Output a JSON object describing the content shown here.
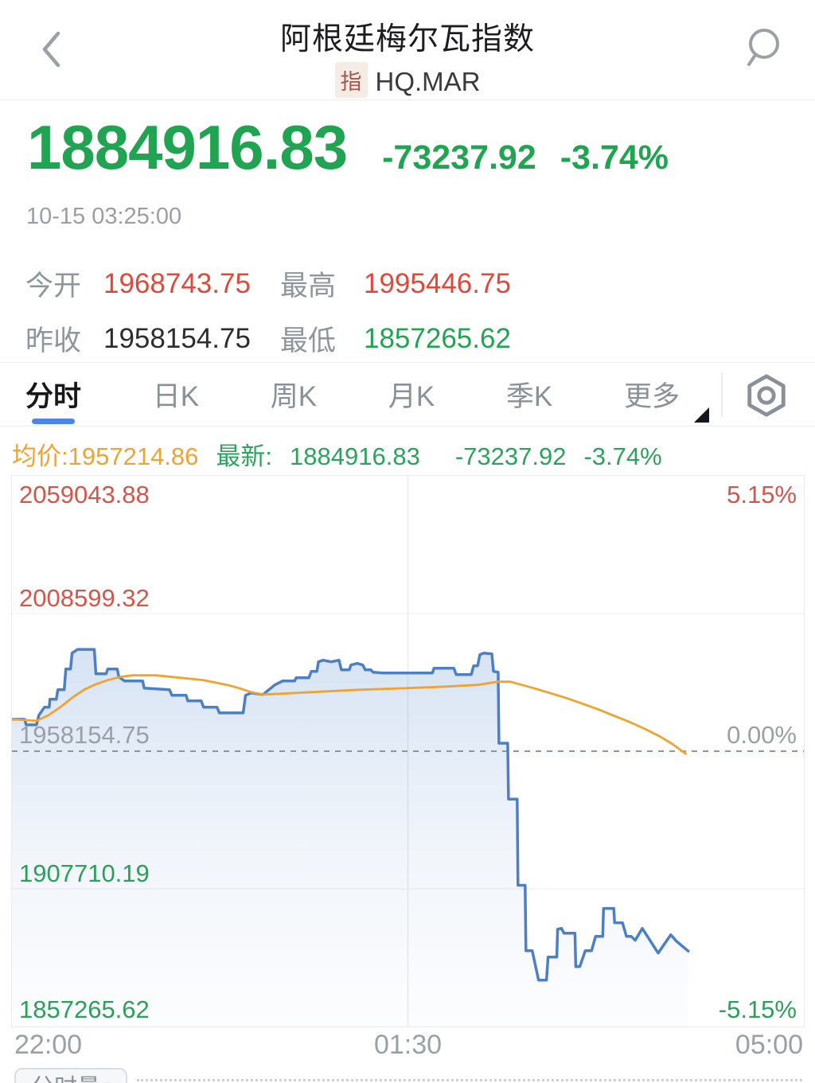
{
  "header": {
    "title": "阿根廷梅尔瓦指数",
    "badge": "指",
    "code": "HQ.MAR"
  },
  "quote": {
    "price": "1884916.83",
    "change": "-73237.92",
    "change_pct": "-3.74%",
    "timestamp": "10-15 03:25:00",
    "stats": [
      {
        "label": "今开",
        "value": "1968743.75",
        "color": "red"
      },
      {
        "label": "最高",
        "value": "1995446.75",
        "color": "red"
      },
      {
        "label": "昨收",
        "value": "1958154.75",
        "color": "dark"
      },
      {
        "label": "最低",
        "value": "1857265.62",
        "color": "green"
      }
    ]
  },
  "tabs": {
    "items": [
      "分时",
      "日K",
      "周K",
      "月K",
      "季K",
      "更多"
    ],
    "active": "分时"
  },
  "legend": {
    "avg_label": "均价:",
    "avg_value": "1957214.86",
    "last_label": "最新:",
    "last_value": "1884916.83",
    "last_change": "-73237.92",
    "last_pct": "-3.74%"
  },
  "volume": {
    "button_label": "分时量",
    "caret": "▾"
  },
  "colors": {
    "up_red": "#e0483c",
    "down_green": "#21a452",
    "avg_orange": "#f0a330",
    "line_blue": "#4d7fc4",
    "fill_blue": "#7aa3d9",
    "accent_blue": "#4a86e8",
    "dash_gray": "#8e959c",
    "grid_light": "#f3f3f3",
    "grid_mid": "#e9e9e9"
  },
  "chart_data": {
    "type": "line",
    "title": "分时 (intraday) — 阿根廷梅尔瓦指数 HQ.MAR",
    "ylim": [
      1857265.62,
      2059043.88
    ],
    "baseline": 1958154.75,
    "grid": true,
    "legend_position": "top-left",
    "y_axis_left": [
      {
        "text": "2059043.88",
        "color": "red"
      },
      {
        "text": "2008599.32",
        "color": "red"
      },
      {
        "text": "1958154.75",
        "color": "gray"
      },
      {
        "text": "1907710.19",
        "color": "green"
      },
      {
        "text": "1857265.62",
        "color": "green"
      }
    ],
    "y_axis_right": [
      {
        "text": "5.15%",
        "color": "red"
      },
      {
        "text": "0.00%",
        "color": "gray"
      },
      {
        "text": "-5.15%",
        "color": "green"
      }
    ],
    "x_ticks": [
      "22:00",
      "01:30",
      "05:00"
    ],
    "series": [
      {
        "name": "price",
        "color": "#4d7fc4",
        "points": [
          [
            0.0,
            1969850
          ],
          [
            0.016,
            1969850
          ],
          [
            0.018,
            1967800
          ],
          [
            0.031,
            1967800
          ],
          [
            0.034,
            1971300
          ],
          [
            0.041,
            1974240
          ],
          [
            0.047,
            1974240
          ],
          [
            0.048,
            1977160
          ],
          [
            0.056,
            1977160
          ],
          [
            0.058,
            1980670
          ],
          [
            0.066,
            1980670
          ],
          [
            0.068,
            1988280
          ],
          [
            0.074,
            1988280
          ],
          [
            0.076,
            1994120
          ],
          [
            0.083,
            1995447
          ],
          [
            0.104,
            1995447
          ],
          [
            0.106,
            1986520
          ],
          [
            0.119,
            1986520
          ],
          [
            0.121,
            1988280
          ],
          [
            0.133,
            1988280
          ],
          [
            0.135,
            1985350
          ],
          [
            0.142,
            1983890
          ],
          [
            0.165,
            1983890
          ],
          [
            0.167,
            1981260
          ],
          [
            0.199,
            1980670
          ],
          [
            0.202,
            1978620
          ],
          [
            0.22,
            1978620
          ],
          [
            0.222,
            1976580
          ],
          [
            0.239,
            1976580
          ],
          [
            0.242,
            1974240
          ],
          [
            0.259,
            1974240
          ],
          [
            0.262,
            1972190
          ],
          [
            0.292,
            1972190
          ],
          [
            0.295,
            1978620
          ],
          [
            0.302,
            1979500
          ],
          [
            0.317,
            1978920
          ],
          [
            0.332,
            1982430
          ],
          [
            0.342,
            1983890
          ],
          [
            0.357,
            1983890
          ],
          [
            0.359,
            1985060
          ],
          [
            0.375,
            1985060
          ],
          [
            0.378,
            1987400
          ],
          [
            0.385,
            1987400
          ],
          [
            0.387,
            1990910
          ],
          [
            0.393,
            1991490
          ],
          [
            0.403,
            1990910
          ],
          [
            0.413,
            1991490
          ],
          [
            0.416,
            1987980
          ],
          [
            0.426,
            1987980
          ],
          [
            0.428,
            1989740
          ],
          [
            0.436,
            1990320
          ],
          [
            0.443,
            1989740
          ],
          [
            0.446,
            1987980
          ],
          [
            0.453,
            1987980
          ],
          [
            0.456,
            1987110
          ],
          [
            0.468,
            1986810
          ],
          [
            0.531,
            1986810
          ],
          [
            0.533,
            1988570
          ],
          [
            0.558,
            1988570
          ],
          [
            0.561,
            1986230
          ],
          [
            0.58,
            1986230
          ],
          [
            0.583,
            1989450
          ],
          [
            0.588,
            1989450
          ],
          [
            0.591,
            1993540
          ],
          [
            0.596,
            1994120
          ],
          [
            0.606,
            1993830
          ],
          [
            0.608,
            1987400
          ],
          [
            0.614,
            1987110
          ],
          [
            0.615,
            1961080
          ],
          [
            0.626,
            1961080
          ],
          [
            0.627,
            1940610
          ],
          [
            0.638,
            1940610
          ],
          [
            0.639,
            1909030
          ],
          [
            0.648,
            1909030
          ],
          [
            0.649,
            1885050
          ],
          [
            0.657,
            1885050
          ],
          [
            0.665,
            1874230
          ],
          [
            0.675,
            1874230
          ],
          [
            0.677,
            1882710
          ],
          [
            0.688,
            1882710
          ],
          [
            0.689,
            1892940
          ],
          [
            0.694,
            1893230
          ],
          [
            0.697,
            1891480
          ],
          [
            0.711,
            1891480
          ],
          [
            0.712,
            1879200
          ],
          [
            0.717,
            1879200
          ],
          [
            0.724,
            1885050
          ],
          [
            0.732,
            1885050
          ],
          [
            0.737,
            1890310
          ],
          [
            0.746,
            1890310
          ],
          [
            0.747,
            1900550
          ],
          [
            0.76,
            1900550
          ],
          [
            0.761,
            1895280
          ],
          [
            0.771,
            1895280
          ],
          [
            0.776,
            1890310
          ],
          [
            0.782,
            1890310
          ],
          [
            0.787,
            1888850
          ],
          [
            0.796,
            1893230
          ],
          [
            0.816,
            1884170
          ],
          [
            0.832,
            1890900
          ],
          [
            0.839,
            1888560
          ],
          [
            0.854,
            1884917
          ]
        ]
      },
      {
        "name": "avg",
        "color": "#f0a330",
        "points": [
          [
            0.0,
            1969850
          ],
          [
            0.02,
            1969500
          ],
          [
            0.031,
            1969270
          ],
          [
            0.046,
            1971310
          ],
          [
            0.061,
            1974240
          ],
          [
            0.076,
            1977750
          ],
          [
            0.091,
            1980670
          ],
          [
            0.106,
            1982720
          ],
          [
            0.121,
            1984180
          ],
          [
            0.137,
            1985350
          ],
          [
            0.152,
            1985940
          ],
          [
            0.182,
            1985940
          ],
          [
            0.212,
            1985060
          ],
          [
            0.242,
            1984180
          ],
          [
            0.272,
            1982430
          ],
          [
            0.287,
            1981260
          ],
          [
            0.302,
            1979790
          ],
          [
            0.317,
            1978920
          ],
          [
            0.34,
            1979210
          ],
          [
            0.378,
            1979790
          ],
          [
            0.438,
            1980670
          ],
          [
            0.498,
            1981260
          ],
          [
            0.548,
            1981840
          ],
          [
            0.588,
            1982430
          ],
          [
            0.613,
            1983600
          ],
          [
            0.629,
            1983600
          ],
          [
            0.644,
            1982430
          ],
          [
            0.659,
            1981260
          ],
          [
            0.679,
            1979500
          ],
          [
            0.699,
            1977750
          ],
          [
            0.719,
            1975700
          ],
          [
            0.739,
            1973650
          ],
          [
            0.759,
            1971310
          ],
          [
            0.779,
            1968980
          ],
          [
            0.799,
            1966340
          ],
          [
            0.819,
            1963420
          ],
          [
            0.834,
            1960790
          ],
          [
            0.851,
            1957215
          ]
        ]
      }
    ]
  }
}
